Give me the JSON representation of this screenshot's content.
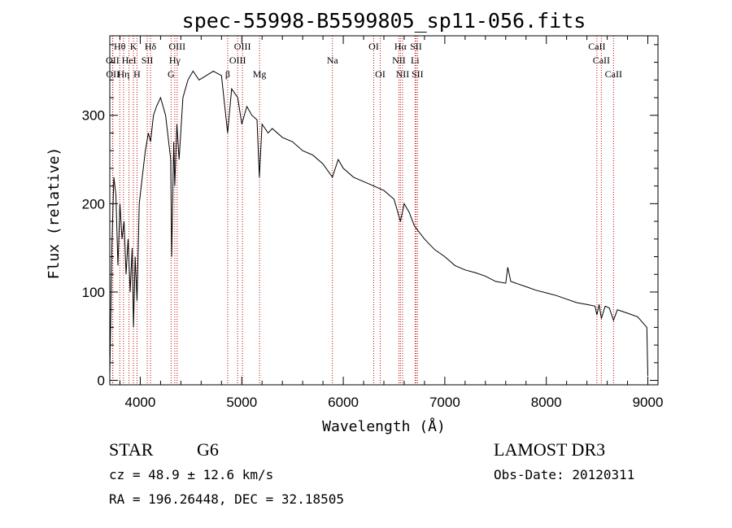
{
  "chart_data": {
    "type": "line",
    "title": "spec-55998-B5599805_sp11-056.fits",
    "xlabel": "Wavelength (Å)",
    "ylabel": "Flux (relative)",
    "xlim": [
      3700,
      9100
    ],
    "ylim": [
      -5,
      390
    ],
    "xticks": [
      4000,
      5000,
      6000,
      7000,
      8000,
      9000
    ],
    "yticks": [
      0,
      100,
      200,
      300
    ],
    "series": [
      {
        "name": "spectrum",
        "x": [
          3700,
          3720,
          3740,
          3760,
          3780,
          3800,
          3820,
          3840,
          3860,
          3880,
          3900,
          3920,
          3933,
          3950,
          3968,
          3990,
          4020,
          4050,
          4080,
          4101,
          4130,
          4160,
          4200,
          4250,
          4300,
          4310,
          4330,
          4340,
          4361,
          4383,
          4420,
          4470,
          4520,
          4580,
          4650,
          4720,
          4800,
          4861,
          4900,
          4960,
          5000,
          5050,
          5100,
          5150,
          5173,
          5200,
          5260,
          5300,
          5400,
          5500,
          5600,
          5700,
          5800,
          5893,
          5950,
          6000,
          6100,
          6200,
          6300,
          6400,
          6500,
          6563,
          6600,
          6650,
          6700,
          6800,
          6900,
          7000,
          7100,
          7200,
          7300,
          7400,
          7500,
          7600,
          7620,
          7650,
          7700,
          7800,
          7900,
          8000,
          8100,
          8200,
          8300,
          8400,
          8480,
          8498,
          8520,
          8542,
          8580,
          8620,
          8662,
          8700,
          8800,
          8900,
          8960,
          8990,
          9000
        ],
        "y": [
          5,
          150,
          230,
          210,
          130,
          200,
          160,
          180,
          120,
          160,
          100,
          150,
          60,
          140,
          90,
          200,
          230,
          260,
          280,
          270,
          300,
          310,
          320,
          300,
          250,
          140,
          270,
          220,
          290,
          250,
          320,
          340,
          350,
          340,
          345,
          350,
          345,
          280,
          330,
          320,
          290,
          310,
          300,
          295,
          230,
          290,
          280,
          285,
          275,
          270,
          260,
          255,
          245,
          230,
          250,
          240,
          230,
          225,
          220,
          215,
          205,
          180,
          200,
          190,
          175,
          160,
          148,
          140,
          130,
          125,
          122,
          118,
          112,
          110,
          128,
          112,
          110,
          106,
          102,
          99,
          96,
          92,
          88,
          86,
          84,
          74,
          86,
          70,
          84,
          82,
          68,
          80,
          76,
          72,
          64,
          60,
          5
        ]
      }
    ],
    "emission_lines": [
      {
        "label": "Hθ",
        "x": 3798,
        "row": 0
      },
      {
        "label": "K",
        "x": 3933,
        "row": 0
      },
      {
        "label": "Hδ",
        "x": 4101,
        "row": 0
      },
      {
        "label": "OIII",
        "x": 4363,
        "row": 0
      },
      {
        "label": "OIII",
        "x": 5007,
        "row": 0
      },
      {
        "label": "OI",
        "x": 6300,
        "row": 0
      },
      {
        "label": "Hα",
        "x": 6563,
        "row": 0
      },
      {
        "label": "SII",
        "x": 6716,
        "row": 0
      },
      {
        "label": "CaII",
        "x": 8498,
        "row": 0
      },
      {
        "label": "OII",
        "x": 3727,
        "row": 1
      },
      {
        "label": "HeI",
        "x": 3889,
        "row": 1
      },
      {
        "label": "SII",
        "x": 4069,
        "row": 1
      },
      {
        "label": "Hγ",
        "x": 4340,
        "row": 1
      },
      {
        "label": "OIII",
        "x": 4959,
        "row": 1
      },
      {
        "label": "Na",
        "x": 5893,
        "row": 1
      },
      {
        "label": "NII",
        "x": 6548,
        "row": 1
      },
      {
        "label": "Li",
        "x": 6707,
        "row": 1
      },
      {
        "label": "CaII",
        "x": 8542,
        "row": 1
      },
      {
        "label": "OII",
        "x": 3730,
        "row": 2
      },
      {
        "label": "Hη",
        "x": 3835,
        "row": 2
      },
      {
        "label": "H",
        "x": 3968,
        "row": 2
      },
      {
        "label": "G",
        "x": 4304,
        "row": 2
      },
      {
        "label": "β",
        "x": 4861,
        "row": 2
      },
      {
        "label": "Mg",
        "x": 5175,
        "row": 2
      },
      {
        "label": "OI",
        "x": 6364,
        "row": 2
      },
      {
        "label": "NII",
        "x": 6584,
        "row": 2
      },
      {
        "label": "SII",
        "x": 6731,
        "row": 2
      },
      {
        "label": "CaII",
        "x": 8662,
        "row": 2
      }
    ]
  },
  "info": {
    "class": "STAR",
    "subclass": "G6",
    "survey": "LAMOST DR3",
    "cz": "cz = 48.9 ± 12.6 km/s",
    "obs_date": "Obs-Date: 20120311",
    "radec": "RA = 196.26448, DEC =  32.18505"
  },
  "colors": {
    "axis": "#000000",
    "spectrum": "#000000",
    "line_marker": "#c00000"
  }
}
